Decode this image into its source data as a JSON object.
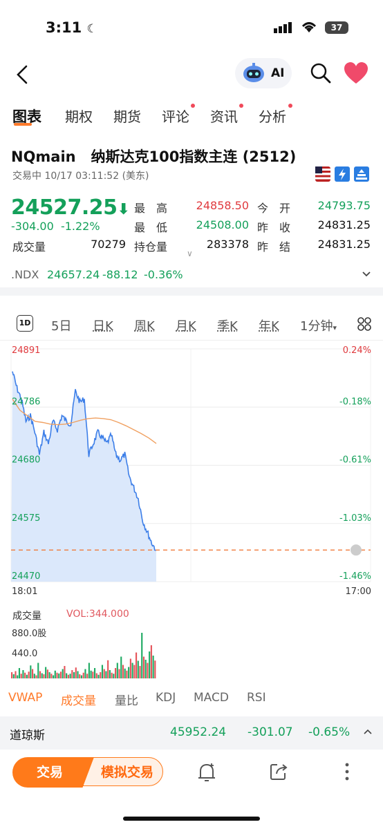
{
  "status_bar": {
    "time": "3:11",
    "battery": "37"
  },
  "header": {
    "ai_label": "AI"
  },
  "tabs": [
    {
      "label": "图表",
      "active": true,
      "dot": false
    },
    {
      "label": "期权",
      "active": false,
      "dot": false
    },
    {
      "label": "期货",
      "active": false,
      "dot": false
    },
    {
      "label": "评论",
      "active": false,
      "dot": true
    },
    {
      "label": "资讯",
      "active": false,
      "dot": true
    },
    {
      "label": "分析",
      "active": false,
      "dot": true
    }
  ],
  "quote": {
    "title": "NQmain   纳斯达克100指数主连 (2512)",
    "subtitle": "交易中 10/17 03:11:52 (美东)",
    "price": "24527.25",
    "change": "-304.00",
    "change_pct": "-1.22%",
    "volume_label": "成交量",
    "volume": "70279",
    "high_label": "最　高",
    "high": "24858.50",
    "low_label": "最　低",
    "low": "24508.00",
    "oi_label": "持仓量",
    "oi": "283378",
    "open_label": "今　开",
    "open": "24793.75",
    "prev_close_label": "昨　收",
    "prev_close": "24831.25",
    "prev_settle_label": "昨　结",
    "prev_settle": "24831.25"
  },
  "ndx": {
    "symbol": ".NDX",
    "price": "24657.24",
    "change": "-88.12",
    "change_pct": "-0.36%"
  },
  "periods": {
    "d1": "1D",
    "d5": "5日",
    "daily": "日K",
    "weekly": "周K",
    "monthly": "月K",
    "quarterly": "季K",
    "yearly": "年K",
    "minute": "1分钟"
  },
  "chart_data": {
    "type": "line",
    "y_labels": [
      "24891",
      "24786",
      "24680",
      "24575",
      "24470"
    ],
    "pct_labels": [
      "0.24%",
      "-0.18%",
      "-0.61%",
      "-1.03%",
      "-1.46%"
    ],
    "ylim": [
      24470,
      24891
    ],
    "x_labels": [
      "18:01",
      "17:00"
    ],
    "reference_line": 24527.25,
    "price_series": [
      24850,
      24820,
      24800,
      24760,
      24770,
      24740,
      24700,
      24740,
      24720,
      24760,
      24745,
      24770,
      24760,
      24755,
      24815,
      24795,
      24800,
      24700,
      24720,
      24740,
      24730,
      24720,
      24735,
      24700,
      24690,
      24700,
      24660,
      24640,
      24620,
      24580,
      24560,
      24540,
      24527
    ],
    "vwap_series": [
      24800,
      24780,
      24770,
      24760,
      24758,
      24755,
      24754,
      24755,
      24758,
      24762,
      24765,
      24766,
      24765,
      24763,
      24758,
      24752,
      24745,
      24738,
      24730,
      24720
    ],
    "volume": {
      "title": "成交量",
      "vol_label": "VOL:344.000",
      "y_labels": [
        "880.0股",
        "440.0"
      ],
      "ylim": [
        0,
        1000
      ],
      "bars": [
        120,
        80,
        140,
        60,
        200,
        90,
        160,
        110,
        70,
        130,
        250,
        180,
        90,
        60,
        300,
        140,
        100,
        80,
        220,
        170,
        120,
        90,
        60,
        150,
        110,
        95,
        130,
        180,
        240,
        100,
        70,
        90,
        160,
        120,
        210,
        140,
        80,
        60,
        110,
        180,
        90,
        300,
        150,
        130,
        200,
        100,
        70,
        120,
        260,
        180,
        140,
        350,
        160,
        110,
        90,
        200,
        300,
        180,
        420,
        260,
        190,
        150,
        220,
        380,
        300,
        260,
        500,
        340,
        240,
        880,
        420,
        360,
        300,
        520,
        640,
        440,
        344
      ],
      "colors": [
        "r",
        "g",
        "r",
        "g",
        "g",
        "r",
        "g",
        "r",
        "g",
        "r",
        "g",
        "r",
        "g",
        "r",
        "g",
        "r",
        "g",
        "r",
        "g",
        "r",
        "g",
        "r",
        "g",
        "g",
        "r",
        "g",
        "r",
        "g",
        "r",
        "g",
        "r",
        "g",
        "r",
        "g",
        "r",
        "g",
        "r",
        "g",
        "r",
        "g",
        "r",
        "g",
        "g",
        "r",
        "g",
        "r",
        "g",
        "r",
        "g",
        "r",
        "g",
        "r",
        "g",
        "r",
        "g",
        "r",
        "g",
        "r",
        "g",
        "r",
        "g",
        "r",
        "g",
        "r",
        "g",
        "r",
        "r",
        "g",
        "r",
        "g",
        "r",
        "g",
        "r",
        "g",
        "r",
        "g",
        "r"
      ]
    }
  },
  "indicators": [
    "VWAP",
    "成交量",
    "量比",
    "KDJ",
    "MACD",
    "RSI"
  ],
  "djia": {
    "name": "道琼斯",
    "price": "45952.24",
    "change": "-301.07",
    "change_pct": "-0.65%"
  },
  "bottom_bar": {
    "trade": "交易",
    "sim_trade": "模拟交易"
  }
}
